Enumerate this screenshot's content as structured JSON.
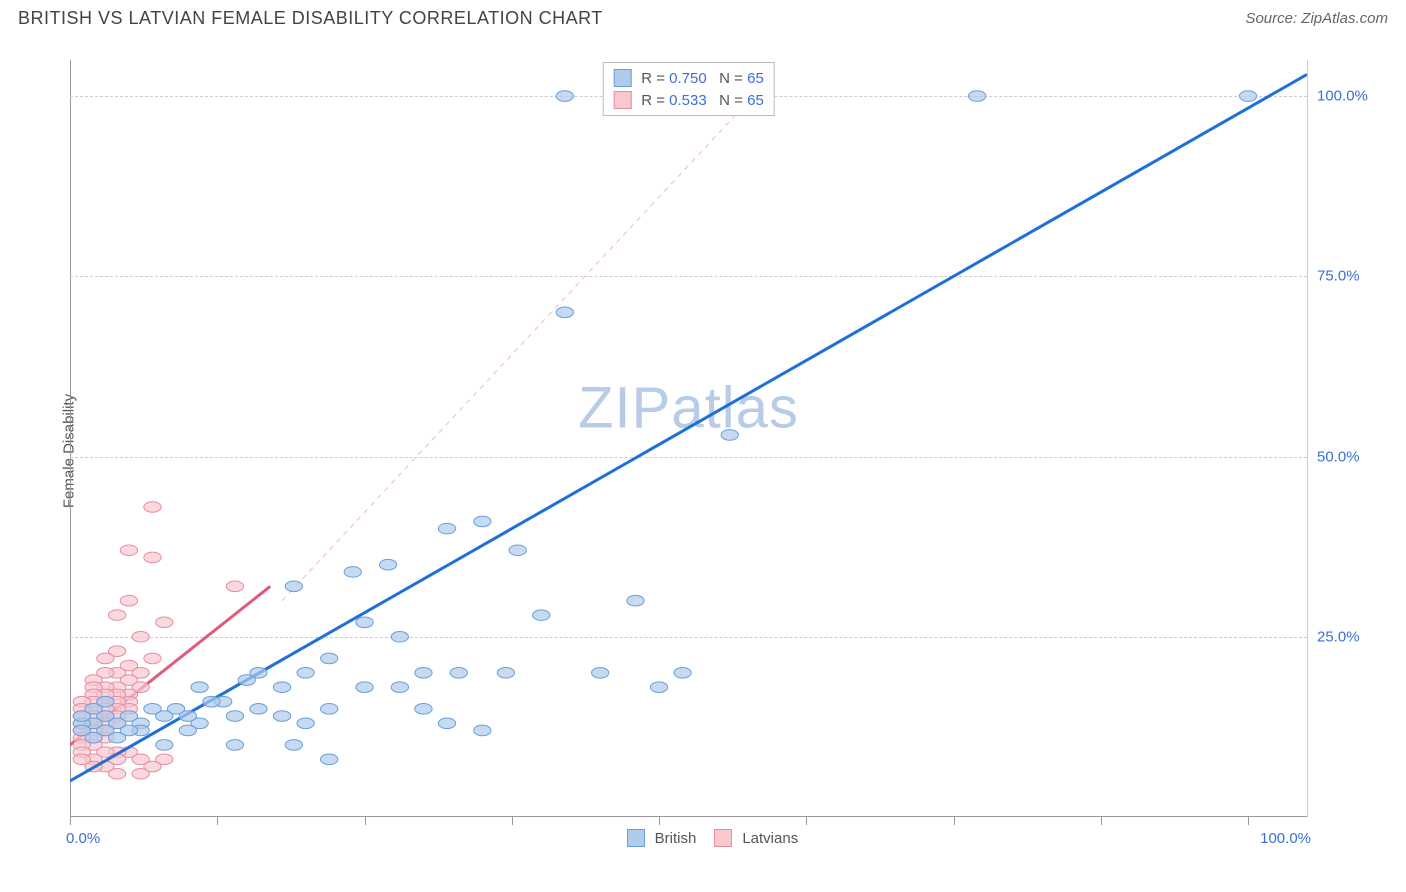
{
  "title": "BRITISH VS LATVIAN FEMALE DISABILITY CORRELATION CHART",
  "source": "Source: ZipAtlas.com",
  "y_axis_label": "Female Disability",
  "watermark": {
    "part1": "ZIP",
    "part2": "atlas",
    "color": "#b8cce8",
    "fontsize": 58
  },
  "chart": {
    "type": "scatter-with-regression",
    "background_color": "#ffffff",
    "grid_color": "#cccccc",
    "axis_color": "#999999",
    "xlim": [
      0,
      105
    ],
    "ylim": [
      0,
      105
    ],
    "x_ticks": [
      0,
      12.5,
      25,
      37.5,
      50,
      62.5,
      75,
      87.5,
      100
    ],
    "x_tick_labels": {
      "0": "0.0%",
      "100": "100.0%"
    },
    "y_grid": [
      25,
      50,
      75,
      100
    ],
    "y_tick_labels": {
      "25": "25.0%",
      "50": "50.0%",
      "75": "75.0%",
      "100": "100.0%"
    },
    "xtick_color": "#3a6fd8",
    "ytick_color": "#3a6fd8",
    "label_fontsize": 15,
    "series": [
      {
        "name": "British",
        "color_fill": "#aecbeb",
        "color_stroke": "#6a9fd8",
        "marker_radius": 7,
        "marker_opacity": 0.7,
        "regression": {
          "x1": 0,
          "y1": 5,
          "x2": 105,
          "y2": 103,
          "color": "#1f6fd6",
          "width": 3,
          "dash": "none"
        },
        "dashed_extension": {
          "x1": 18,
          "y1": 30,
          "x2": 58,
          "y2": 100,
          "color": "#f4b6c2",
          "width": 1,
          "dash": "5,5"
        },
        "R": "0.750",
        "N": "65",
        "points": [
          [
            100,
            100
          ],
          [
            77,
            100
          ],
          [
            52,
            100
          ],
          [
            42,
            100
          ],
          [
            42,
            70
          ],
          [
            56,
            53
          ],
          [
            32,
            40
          ],
          [
            35,
            41
          ],
          [
            38,
            37
          ],
          [
            27,
            35
          ],
          [
            24,
            34
          ],
          [
            19,
            32
          ],
          [
            48,
            30
          ],
          [
            40,
            28
          ],
          [
            52,
            20
          ],
          [
            50,
            18
          ],
          [
            45,
            20
          ],
          [
            37,
            20
          ],
          [
            33,
            20
          ],
          [
            30,
            20
          ],
          [
            28,
            25
          ],
          [
            25,
            27
          ],
          [
            22,
            22
          ],
          [
            20,
            20
          ],
          [
            18,
            18
          ],
          [
            35,
            12
          ],
          [
            32,
            13
          ],
          [
            30,
            15
          ],
          [
            28,
            18
          ],
          [
            25,
            18
          ],
          [
            22,
            15
          ],
          [
            20,
            13
          ],
          [
            18,
            14
          ],
          [
            16,
            15
          ],
          [
            15,
            19
          ],
          [
            14,
            14
          ],
          [
            13,
            16
          ],
          [
            12,
            16
          ],
          [
            11,
            13
          ],
          [
            10,
            12
          ],
          [
            10,
            14
          ],
          [
            9,
            15
          ],
          [
            8,
            14
          ],
          [
            7,
            15
          ],
          [
            6,
            13
          ],
          [
            6,
            12
          ],
          [
            5,
            14
          ],
          [
            5,
            12
          ],
          [
            4,
            13
          ],
          [
            16,
            20
          ],
          [
            14,
            10
          ],
          [
            11,
            18
          ],
          [
            22,
            8
          ],
          [
            19,
            10
          ],
          [
            8,
            10
          ],
          [
            3,
            12
          ],
          [
            3,
            14
          ],
          [
            2,
            13
          ],
          [
            2,
            11
          ],
          [
            1,
            13
          ],
          [
            1,
            12
          ],
          [
            1,
            14
          ],
          [
            2,
            15
          ],
          [
            3,
            16
          ],
          [
            4,
            11
          ]
        ]
      },
      {
        "name": "Latvians",
        "color_fill": "#f7c8d0",
        "color_stroke": "#e88ca0",
        "marker_radius": 7,
        "marker_opacity": 0.7,
        "regression": {
          "x1": 0,
          "y1": 10,
          "x2": 17,
          "y2": 32,
          "color": "#e05a7a",
          "width": 3,
          "dash": "none"
        },
        "R": "0.533",
        "N": "65",
        "points": [
          [
            7,
            43
          ],
          [
            5,
            37
          ],
          [
            7,
            36
          ],
          [
            5,
            30
          ],
          [
            4,
            28
          ],
          [
            14,
            32
          ],
          [
            8,
            27
          ],
          [
            6,
            25
          ],
          [
            4,
            23
          ],
          [
            3,
            22
          ],
          [
            7,
            22
          ],
          [
            5,
            21
          ],
          [
            6,
            20
          ],
          [
            4,
            20
          ],
          [
            3,
            20
          ],
          [
            2,
            19
          ],
          [
            5,
            19
          ],
          [
            4,
            18
          ],
          [
            3,
            18
          ],
          [
            2,
            18
          ],
          [
            6,
            18
          ],
          [
            5,
            17
          ],
          [
            4,
            17
          ],
          [
            3,
            17
          ],
          [
            2,
            17
          ],
          [
            5,
            16
          ],
          [
            4,
            16
          ],
          [
            3,
            16
          ],
          [
            2,
            16
          ],
          [
            1,
            16
          ],
          [
            5,
            15
          ],
          [
            4,
            15
          ],
          [
            3,
            15
          ],
          [
            2,
            15
          ],
          [
            1,
            15
          ],
          [
            4,
            14
          ],
          [
            3,
            14
          ],
          [
            2,
            14
          ],
          [
            1,
            14
          ],
          [
            4,
            13
          ],
          [
            3,
            13
          ],
          [
            2,
            13
          ],
          [
            1,
            13
          ],
          [
            3,
            12
          ],
          [
            2,
            12
          ],
          [
            1,
            12
          ],
          [
            3,
            11
          ],
          [
            2,
            11
          ],
          [
            1,
            11
          ],
          [
            2,
            10
          ],
          [
            1,
            10
          ],
          [
            5,
            9
          ],
          [
            4,
            9
          ],
          [
            3,
            9
          ],
          [
            8,
            8
          ],
          [
            6,
            8
          ],
          [
            4,
            8
          ],
          [
            2,
            8
          ],
          [
            3,
            7
          ],
          [
            7,
            7
          ],
          [
            4,
            6
          ],
          [
            6,
            6
          ],
          [
            2,
            7
          ],
          [
            1,
            9
          ],
          [
            1,
            8
          ]
        ]
      }
    ],
    "legend_top": {
      "border_color": "#bbbbbb",
      "r_label": "R =",
      "n_label": "N =",
      "r_color": "#3a6fd8",
      "n_color": "#3a6fd8",
      "text_color": "#555555"
    },
    "legend_bottom": [
      {
        "label": "British",
        "fill": "#aecbeb",
        "stroke": "#6a9fd8"
      },
      {
        "label": "Latvians",
        "fill": "#f7c8d0",
        "stroke": "#e88ca0"
      }
    ]
  }
}
